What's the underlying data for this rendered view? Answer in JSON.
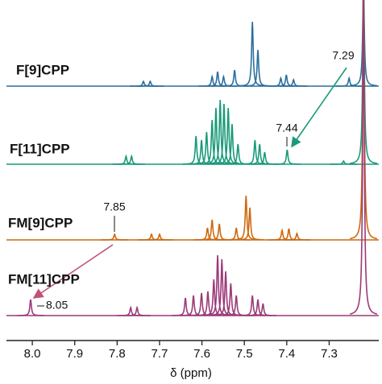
{
  "chart_data": {
    "type": "nmr",
    "xlabel": "δ (ppm)",
    "xlim": [
      8.061,
      7.183
    ],
    "xticks": [
      {
        "value": 8,
        "label": "8.0"
      },
      7.9,
      7.8,
      7.7,
      7.6,
      7.5,
      7.4,
      7.3
    ],
    "series": [
      {
        "name": "F[9]CPP",
        "color": "#2b6f9e",
        "x": [
          7.738,
          7.722,
          7.576,
          7.563,
          7.549,
          7.523,
          7.481,
          7.468,
          7.414,
          7.401,
          7.384,
          7.253,
          7.219
        ],
        "values": [
          6,
          6,
          12,
          18,
          12,
          20,
          80,
          45,
          10,
          14,
          8,
          10,
          130
        ]
      },
      {
        "name": "F[11]CPP",
        "color": "#1a9a7a",
        "x": [
          7.779,
          7.766,
          7.614,
          7.601,
          7.589,
          7.576,
          7.567,
          7.557,
          7.548,
          7.538,
          7.529,
          7.515,
          7.475,
          7.464,
          7.452,
          7.399,
          7.266,
          7.219
        ],
        "values": [
          10,
          10,
          35,
          30,
          40,
          55,
          70,
          80,
          75,
          70,
          50,
          25,
          30,
          25,
          15,
          18,
          4,
          230
        ]
      },
      {
        "name": "FM[9]CPP",
        "color": "#cc6a10",
        "x": [
          7.806,
          7.719,
          7.7,
          7.587,
          7.576,
          7.559,
          7.519,
          7.496,
          7.487,
          7.411,
          7.395,
          7.376,
          7.219
        ],
        "values": [
          7,
          7,
          7,
          15,
          25,
          20,
          15,
          55,
          40,
          12,
          14,
          8,
          320
        ]
      },
      {
        "name": "FM[11]CPP",
        "color": "#9b3a78",
        "x": [
          8.004,
          7.768,
          7.753,
          7.639,
          7.62,
          7.601,
          7.586,
          7.572,
          7.563,
          7.553,
          7.544,
          7.532,
          7.519,
          7.481,
          7.468,
          7.456,
          7.219
        ],
        "values": [
          20,
          10,
          10,
          22,
          25,
          28,
          30,
          45,
          75,
          70,
          55,
          40,
          25,
          25,
          20,
          15,
          400
        ]
      }
    ],
    "annotations": [
      {
        "text": "7.29"
      },
      {
        "text": "7.44"
      },
      {
        "text": "7.85"
      },
      {
        "text": "8.05"
      }
    ]
  }
}
